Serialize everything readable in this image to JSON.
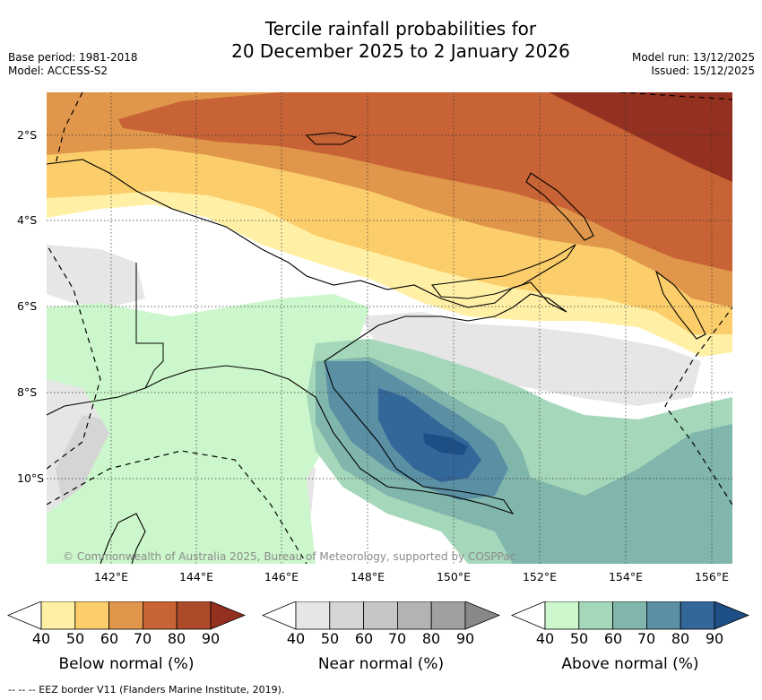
{
  "title": {
    "line1": "Tercile rainfall probabilities for",
    "line2": "20 December 2025 to 2 January 2026"
  },
  "meta": {
    "base_period": "Base period: 1981-2018",
    "model": "Model: ACCESS-S2",
    "model_run": "Model run: 13/12/2025",
    "issued": "Issued: 15/12/2025"
  },
  "axes": {
    "lat_labels": [
      "2°S",
      "4°S",
      "6°S",
      "8°S",
      "10°S"
    ],
    "lon_labels": [
      "142°E",
      "144°E",
      "146°E",
      "148°E",
      "150°E",
      "152°E",
      "154°E",
      "156°E"
    ]
  },
  "copyright": "© Commonwealth of Australia 2025, Bureau of Meteorology, supported by COSPPac",
  "legends": [
    {
      "label": "Below normal (%)",
      "ticks": [
        "40",
        "50",
        "60",
        "70",
        "80",
        "90"
      ],
      "colors": [
        "#fff0a6",
        "#fcce6b",
        "#e0964b",
        "#c76334",
        "#ad4a2a",
        "#93301f"
      ]
    },
    {
      "label": "Near normal (%)",
      "ticks": [
        "40",
        "50",
        "60",
        "70",
        "80",
        "90"
      ],
      "colors": [
        "#e6e6e6",
        "#d5d5d5",
        "#c6c6c6",
        "#b3b3b3",
        "#a0a0a0",
        "#888888"
      ]
    },
    {
      "label": "Above normal (%)",
      "ticks": [
        "40",
        "50",
        "60",
        "70",
        "80",
        "90"
      ],
      "colors": [
        "#ccf7cc",
        "#a5d8bb",
        "#80b6ac",
        "#5a8fa4",
        "#336699",
        "#1d4f86"
      ]
    }
  ],
  "footnote": "--  --  -- EEZ border V11 (Flanders Marine Institute, 2019)."
}
